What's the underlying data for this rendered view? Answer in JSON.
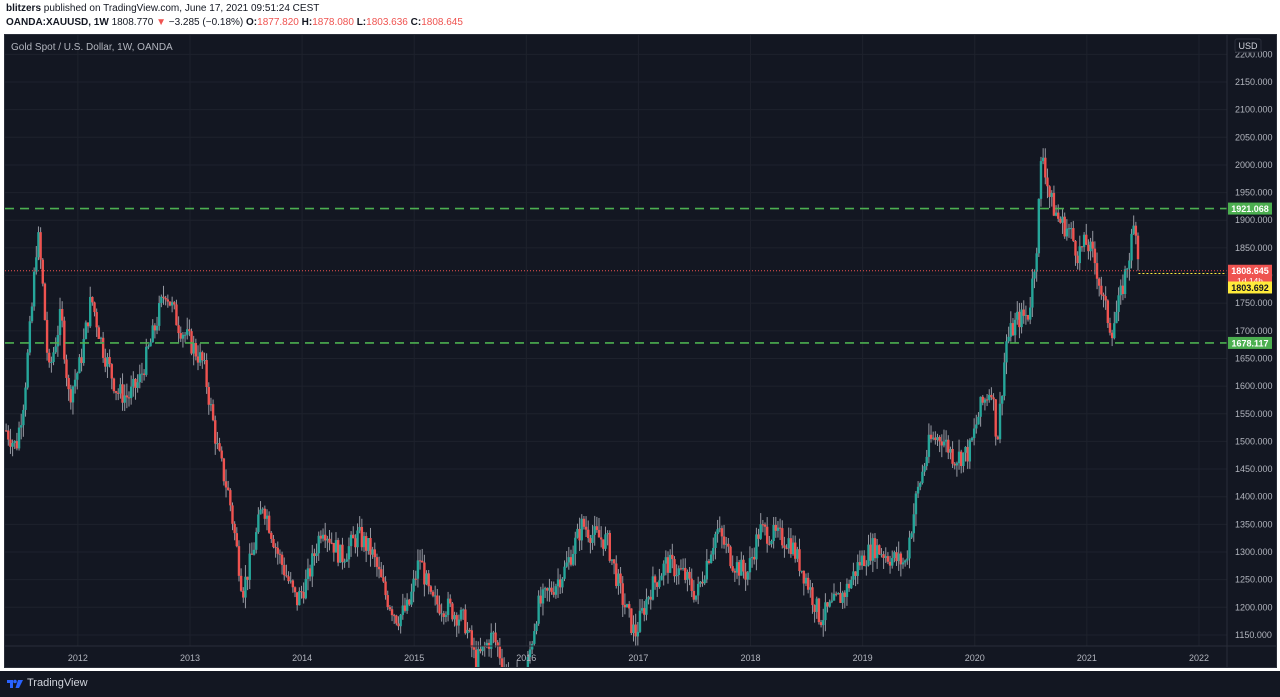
{
  "header": {
    "author": "blitzers",
    "published_text": "published on TradingView.com, June 17, 2021 09:51:24 CEST",
    "symbol": "OANDA:XAUUSD, 1W",
    "last": "1808.770",
    "change_arrow": "▼",
    "change": "−3.285 (−0.18%)",
    "o_label": "O:",
    "open": "1877.820",
    "h_label": "H:",
    "high": "1878.080",
    "l_label": "L:",
    "low": "1803.636",
    "c_label": "C:",
    "close": "1808.645"
  },
  "footer": {
    "brand": "TradingView"
  },
  "chart_data": {
    "type": "candlestick",
    "title": "Gold Spot / U.S. Dollar, 1W, OANDA",
    "currency_label": "USD",
    "x_ticks": [
      "2012",
      "2013",
      "2014",
      "2015",
      "2016",
      "2017",
      "2018",
      "2019",
      "2020",
      "2021",
      "2022"
    ],
    "y_ticks": [
      "1150.000",
      "1200.000",
      "1250.000",
      "1300.000",
      "1350.000",
      "1400.000",
      "1450.000",
      "1500.000",
      "1550.000",
      "1600.000",
      "1650.000",
      "1700.000",
      "1750.000",
      "1800.000",
      "1850.000",
      "1900.000",
      "1950.000",
      "2000.000",
      "2050.000",
      "2100.000",
      "2150.000",
      "2200.000"
    ],
    "ylim": [
      1130,
      2235
    ],
    "xlim": [
      2011.35,
      2022.25
    ],
    "y_scale": "linear",
    "horizontal_levels": [
      {
        "value": 1921.068,
        "label": "1921.068",
        "color": "#4caf50",
        "style": "dashed"
      },
      {
        "value": 1678.117,
        "label": "1678.117",
        "color": "#4caf50",
        "style": "dashed"
      }
    ],
    "price_marker": {
      "value": 1808.645,
      "label": "1808.645",
      "countdown": "1d 14h",
      "color": "#ef5350"
    },
    "low_marker": {
      "value": 1803.692,
      "label": "1803.692",
      "color": "#ffeb3b"
    },
    "colors": {
      "up": "#26a69a",
      "down": "#ef5350",
      "wick": "#b2b5be",
      "background": "#131722",
      "text": "#b2b5be"
    },
    "series_outline": [
      [
        2011.36,
        1520
      ],
      [
        2011.45,
        1490
      ],
      [
        2011.52,
        1580
      ],
      [
        2011.59,
        1740
      ],
      [
        2011.64,
        1880
      ],
      [
        2011.68,
        1800
      ],
      [
        2011.74,
        1620
      ],
      [
        2011.85,
        1730
      ],
      [
        2011.92,
        1580
      ],
      [
        2012.02,
        1640
      ],
      [
        2012.12,
        1760
      ],
      [
        2012.22,
        1670
      ],
      [
        2012.35,
        1590
      ],
      [
        2012.45,
        1580
      ],
      [
        2012.55,
        1610
      ],
      [
        2012.68,
        1700
      ],
      [
        2012.78,
        1775
      ],
      [
        2012.9,
        1710
      ],
      [
        2013.0,
        1680
      ],
      [
        2013.12,
        1640
      ],
      [
        2013.25,
        1480
      ],
      [
        2013.35,
        1400
      ],
      [
        2013.47,
        1230
      ],
      [
        2013.55,
        1290
      ],
      [
        2013.65,
        1390
      ],
      [
        2013.78,
        1300
      ],
      [
        2013.95,
        1210
      ],
      [
        2014.05,
        1250
      ],
      [
        2014.18,
        1350
      ],
      [
        2014.35,
        1290
      ],
      [
        2014.5,
        1330
      ],
      [
        2014.62,
        1300
      ],
      [
        2014.75,
        1220
      ],
      [
        2014.85,
        1180
      ],
      [
        2014.95,
        1200
      ],
      [
        2015.05,
        1290
      ],
      [
        2015.15,
        1210
      ],
      [
        2015.3,
        1200
      ],
      [
        2015.45,
        1175
      ],
      [
        2015.55,
        1100
      ],
      [
        2015.7,
        1150
      ],
      [
        2015.85,
        1070
      ],
      [
        2015.98,
        1060
      ],
      [
        2016.1,
        1200
      ],
      [
        2016.25,
        1240
      ],
      [
        2016.35,
        1270
      ],
      [
        2016.5,
        1350
      ],
      [
        2016.6,
        1330
      ],
      [
        2016.72,
        1320
      ],
      [
        2016.85,
        1220
      ],
      [
        2016.97,
        1150
      ],
      [
        2017.1,
        1230
      ],
      [
        2017.25,
        1280
      ],
      [
        2017.4,
        1260
      ],
      [
        2017.52,
        1220
      ],
      [
        2017.62,
        1290
      ],
      [
        2017.7,
        1340
      ],
      [
        2017.85,
        1280
      ],
      [
        2017.97,
        1260
      ],
      [
        2018.08,
        1340
      ],
      [
        2018.2,
        1330
      ],
      [
        2018.35,
        1320
      ],
      [
        2018.5,
        1250
      ],
      [
        2018.62,
        1180
      ],
      [
        2018.72,
        1200
      ],
      [
        2018.85,
        1230
      ],
      [
        2018.97,
        1280
      ],
      [
        2019.1,
        1310
      ],
      [
        2019.25,
        1290
      ],
      [
        2019.38,
        1280
      ],
      [
        2019.48,
        1400
      ],
      [
        2019.6,
        1500
      ],
      [
        2019.7,
        1510
      ],
      [
        2019.82,
        1470
      ],
      [
        2019.95,
        1480
      ],
      [
        2020.05,
        1560
      ],
      [
        2020.15,
        1600
      ],
      [
        2020.2,
        1500
      ],
      [
        2020.28,
        1680
      ],
      [
        2020.38,
        1720
      ],
      [
        2020.48,
        1730
      ],
      [
        2020.55,
        1850
      ],
      [
        2020.6,
        2030
      ],
      [
        2020.67,
        1940
      ],
      [
        2020.75,
        1900
      ],
      [
        2020.85,
        1880
      ],
      [
        2020.92,
        1840
      ],
      [
        2021.0,
        1860
      ],
      [
        2021.08,
        1820
      ],
      [
        2021.15,
        1750
      ],
      [
        2021.22,
        1700
      ],
      [
        2021.3,
        1760
      ],
      [
        2021.38,
        1840
      ],
      [
        2021.43,
        1900
      ],
      [
        2021.45,
        1877
      ],
      [
        2021.46,
        1808
      ]
    ]
  }
}
